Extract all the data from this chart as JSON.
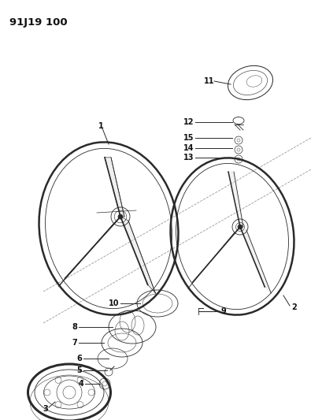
{
  "title": "91J19 100",
  "background_color": "#ffffff",
  "line_color": "#2a2a2a",
  "label_color": "#111111",
  "fig_width": 3.95,
  "fig_height": 5.33,
  "dpi": 100
}
